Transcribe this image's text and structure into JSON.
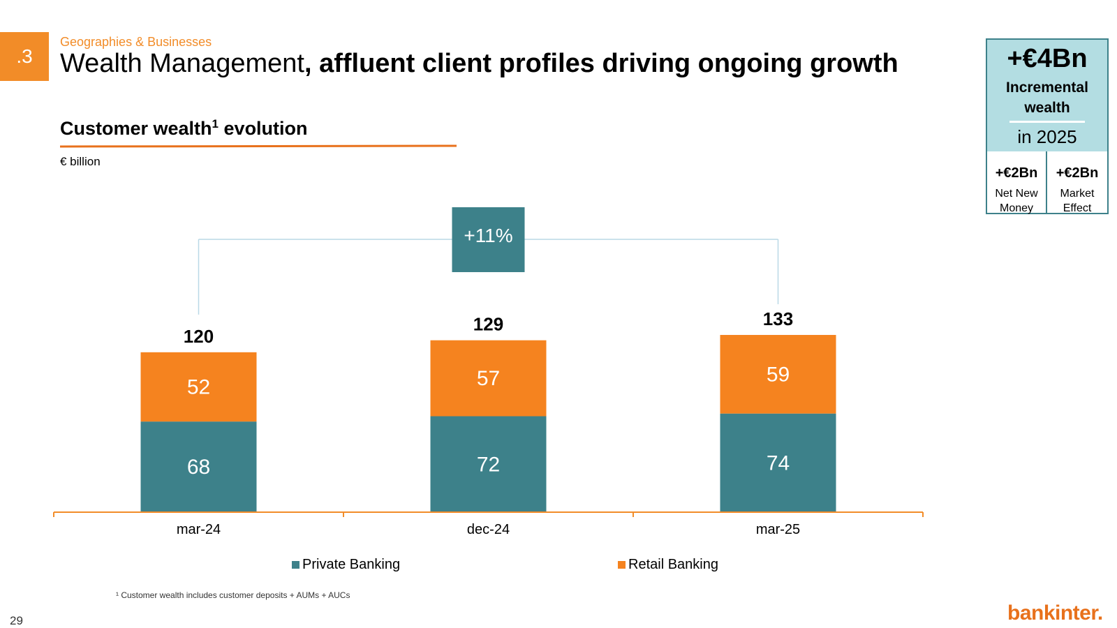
{
  "header": {
    "section_number": ".3",
    "eyebrow": "Geographies & Businesses",
    "title_light": "Wealth Management",
    "title_bold": ", affluent client profiles driving ongoing growth"
  },
  "chart_heading": {
    "title": "Customer wealth",
    "footnote_ref": "1",
    "title_suffix": "evolution",
    "unit": "€ billion"
  },
  "kpi_box": {
    "headline": "+€4Bn",
    "label_line1": "Incremental",
    "label_line2": "wealth",
    "period": "in 2025",
    "left_value": "+€2Bn",
    "left_label_line1": "Net New",
    "left_label_line2": "Money",
    "right_value": "+€2Bn",
    "right_label_line1": "Market",
    "right_label_line2": "Effect"
  },
  "chart_data": {
    "type": "bar",
    "stacked": true,
    "categories": [
      "mar-24",
      "dec-24",
      "mar-25"
    ],
    "series": [
      {
        "name": "Private Banking",
        "values": [
          68,
          72,
          74
        ],
        "color": "#3d818a"
      },
      {
        "name": "Retail Banking",
        "values": [
          52,
          57,
          59
        ],
        "color": "#f5831f"
      }
    ],
    "totals": [
      "120",
      "129",
      "133"
    ],
    "growth_callout": "+11%",
    "growth_from": "mar-24",
    "growth_to": "mar-25",
    "legend_position": "bottom",
    "ylim": [
      0,
      155
    ]
  },
  "colors": {
    "accent": "#f28c28",
    "teal": "#3d818a",
    "kpi_bg": "#b3dde2",
    "bracket": "#b9d8e6"
  },
  "footer": {
    "footnote": "¹ Customer wealth includes customer deposits + AUMs + AUCs",
    "page_number": "29",
    "brand": "bankinter."
  }
}
